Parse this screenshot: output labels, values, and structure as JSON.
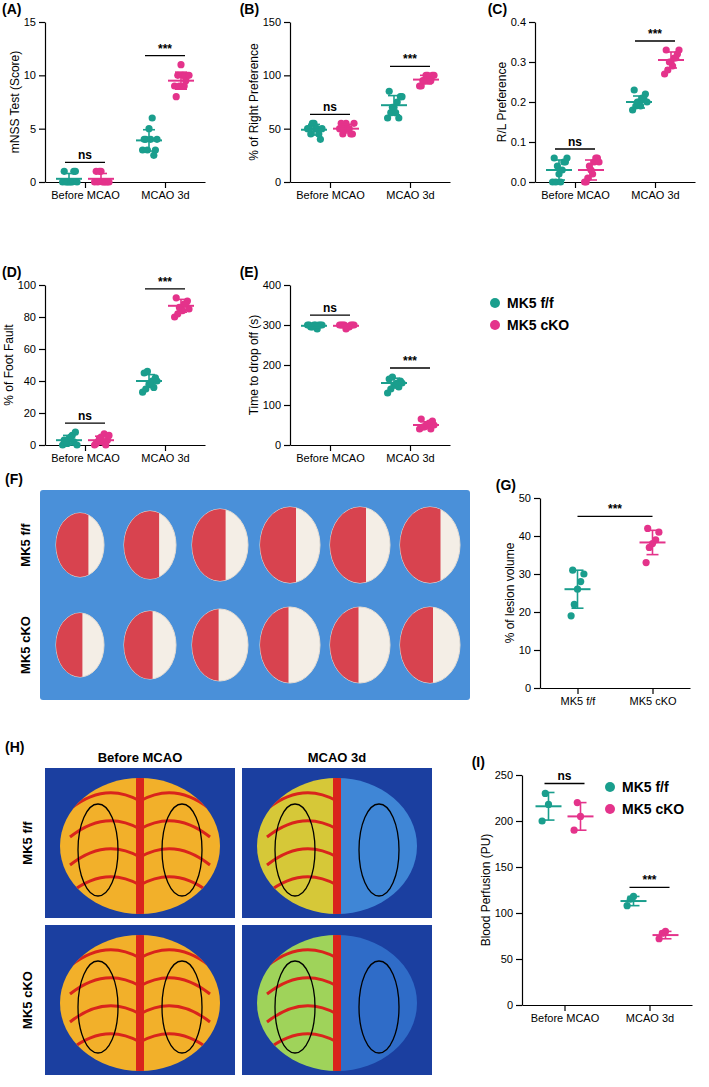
{
  "chart_data": [
    {
      "type": "dot_plot",
      "panel": "(A)",
      "y_label": "mNSS Test (Score)",
      "categories": [
        "Before MCAO",
        "MCAO 3d"
      ],
      "ylim": [
        0,
        15
      ],
      "yticks": [
        0,
        5,
        10,
        15
      ],
      "series": [
        {
          "color": "#1a9e8d",
          "values": [
            [
              0,
              0,
              0,
              0,
              1,
              1,
              0,
              0,
              1,
              0
            ],
            [
              3,
              4,
              5,
              6,
              3,
              4,
              3,
              4,
              2.5,
              4
            ]
          ],
          "mean": [
            0.3,
            3.9
          ],
          "sd": [
            0.5,
            1
          ]
        },
        {
          "color": "#e4338b",
          "values": [
            [
              0,
              0,
              1,
              0,
              0,
              1,
              1,
              0,
              0,
              0
            ],
            [
              9,
              10,
              11,
              9,
              10,
              8,
              9,
              10,
              9.5,
              10
            ]
          ],
          "mean": [
            0.3,
            9.5
          ],
          "sd": [
            0.5,
            0.8
          ]
        }
      ],
      "significance": [
        "ns",
        "***"
      ]
    },
    {
      "type": "dot_plot",
      "panel": "(B)",
      "y_label": "% of Right Preference",
      "categories": [
        "Before MCAO",
        "MCAO 3d"
      ],
      "ylim": [
        0,
        150
      ],
      "yticks": [
        0,
        50,
        100,
        150
      ],
      "series": [
        {
          "color": "#1a9e8d",
          "values": [
            [
              50,
              45,
              55,
              50,
              40,
              50,
              55,
              50,
              45,
              50
            ],
            [
              60,
              65,
              70,
              75,
              80,
              85,
              70,
              65,
              60,
              80
            ]
          ],
          "mean": [
            49,
            72
          ],
          "sd": [
            5,
            9
          ]
        },
        {
          "color": "#e4338b",
          "values": [
            [
              50,
              45,
              55,
              50,
              45,
              55,
              50,
              50,
              45,
              55
            ],
            [
              90,
              95,
              100,
              95,
              100,
              90,
              95,
              100,
              95,
              100
            ]
          ],
          "mean": [
            50,
            96
          ],
          "sd": [
            4,
            4
          ]
        }
      ],
      "significance": [
        "ns",
        "***"
      ]
    },
    {
      "type": "dot_plot",
      "panel": "(C)",
      "y_label": "R/L Preference",
      "categories": [
        "Before MCAO",
        "MCAO 3d"
      ],
      "ylim": [
        0,
        0.4
      ],
      "yticks": [
        {
          "value": 0,
          "label": "0.0"
        },
        0.1,
        0.2,
        0.3,
        0.4
      ],
      "series": [
        {
          "color": "#1a9e8d",
          "values": [
            [
              0,
              0,
              0.02,
              0.03,
              0.05,
              0.06,
              0.04,
              0,
              0.05,
              0.06
            ],
            [
              0.18,
              0.19,
              0.2,
              0.21,
              0.22,
              0.23,
              0.2,
              0.19,
              0.21,
              0.2
            ]
          ],
          "mean": [
            0.03,
            0.2
          ],
          "sd": [
            0.025,
            0.015
          ]
        },
        {
          "color": "#e4338b",
          "values": [
            [
              0,
              0.01,
              0.03,
              0.05,
              0.06,
              0,
              0.04,
              0.02,
              0.06,
              0.05
            ],
            [
              0.27,
              0.28,
              0.3,
              0.31,
              0.32,
              0.33,
              0.3,
              0.29,
              0.31,
              0.33
            ]
          ],
          "mean": [
            0.03,
            0.305
          ],
          "sd": [
            0.025,
            0.02
          ]
        }
      ],
      "significance": [
        "ns",
        "***"
      ]
    },
    {
      "type": "dot_plot",
      "panel": "(D)",
      "y_label": "% of Foot Fault",
      "categories": [
        "Before MCAO",
        "MCAO 3d"
      ],
      "ylim": [
        0,
        100
      ],
      "yticks": [
        0,
        20,
        40,
        60,
        80,
        100
      ],
      "series": [
        {
          "color": "#1a9e8d",
          "values": [
            [
              0,
              2,
              4,
              6,
              8,
              3,
              1,
              5,
              2,
              0
            ],
            [
              33,
              35,
              38,
              40,
              42,
              45,
              46,
              38,
              36,
              40
            ]
          ],
          "mean": [
            3,
            40
          ],
          "sd": [
            3,
            4
          ]
        },
        {
          "color": "#e4338b",
          "values": [
            [
              0,
              2,
              5,
              7,
              3,
              1,
              4,
              2,
              0,
              6
            ],
            [
              80,
              82,
              85,
              88,
              90,
              92,
              86,
              84,
              88,
              85
            ]
          ],
          "mean": [
            3,
            87
          ],
          "sd": [
            2.5,
            4
          ]
        }
      ],
      "significance": [
        "ns",
        "***"
      ]
    },
    {
      "type": "dot_plot",
      "panel": "(E)",
      "y_label": "Time to drop off (s)",
      "categories": [
        "Before MCAO",
        "MCAO 3d"
      ],
      "ylim": [
        0,
        400
      ],
      "yticks": [
        0,
        100,
        200,
        300,
        400
      ],
      "legend": "right",
      "series": [
        {
          "name": "MK5 f/f",
          "color": "#1a9e8d",
          "values": [
            [
              300,
              295,
              300,
              290,
              300,
              300,
              295,
              300,
              300,
              300
            ],
            [
              130,
              140,
              150,
              155,
              160,
              165,
              170,
              150,
              145,
              155
            ]
          ],
          "mean": [
            298,
            155
          ],
          "sd": [
            4,
            12
          ]
        },
        {
          "name": "MK5 cKO",
          "color": "#e4338b",
          "values": [
            [
              300,
              300,
              290,
              295,
              300,
              300,
              300,
              295,
              300,
              300
            ],
            [
              40,
              45,
              50,
              55,
              60,
              65,
              45,
              50,
              40,
              50
            ]
          ],
          "mean": [
            298,
            50
          ],
          "sd": [
            4,
            8
          ]
        }
      ],
      "significance": [
        "ns",
        "***"
      ]
    },
    {
      "type": "dot_plot",
      "panel": "(G)",
      "y_label": "% of lesion volume",
      "categories": [
        "MK5 f/f",
        "MK5 cKO"
      ],
      "ylim": [
        0,
        50
      ],
      "yticks": [
        0,
        10,
        20,
        30,
        40,
        50
      ],
      "series": [
        {
          "color": "#1a9e8d",
          "values": [
            [
              19,
              22,
              26,
              28,
              30,
              31
            ],
            null
          ],
          "mean": [
            26,
            null
          ],
          "sd": [
            5,
            null
          ]
        },
        {
          "color": "#e4338b",
          "values": [
            null,
            [
              33,
              37,
              38,
              39,
              41,
              42
            ]
          ],
          "mean": [
            null,
            38.3
          ],
          "sd": [
            null,
            3.2
          ]
        }
      ],
      "significance": [
        "***"
      ]
    },
    {
      "type": "dot_plot",
      "panel": "(I)",
      "y_label": "Blood Perfusion (PU)",
      "categories": [
        "Before MCAO",
        "MCAO 3d"
      ],
      "ylim": [
        0,
        250
      ],
      "yticks": [
        0,
        50,
        100,
        150,
        200,
        250
      ],
      "legend": "top-right",
      "series": [
        {
          "name": "MK5 f/f",
          "color": "#1a9e8d",
          "values": [
            [
              200,
              230,
              218
            ],
            [
              108,
              115,
              118
            ]
          ],
          "mean": [
            216,
            113
          ],
          "sd": [
            15,
            5
          ]
        },
        {
          "name": "MK5 cKO",
          "color": "#e4338b",
          "values": [
            [
              190,
              220,
              205
            ],
            [
              72,
              78,
              80
            ]
          ],
          "mean": [
            205,
            76
          ],
          "sd": [
            15,
            4
          ]
        }
      ],
      "significance": [
        "ns",
        "***"
      ]
    }
  ],
  "images": [
    {
      "panel": "(F)",
      "row_labels": [
        "MK5 f/f",
        "MK5 cKO"
      ]
    },
    {
      "panel": "(H)",
      "column_labels": [
        "Before MCAO",
        "MCAO 3d"
      ],
      "row_labels": [
        "MK5 f/f",
        "MK5 cKO"
      ]
    }
  ]
}
